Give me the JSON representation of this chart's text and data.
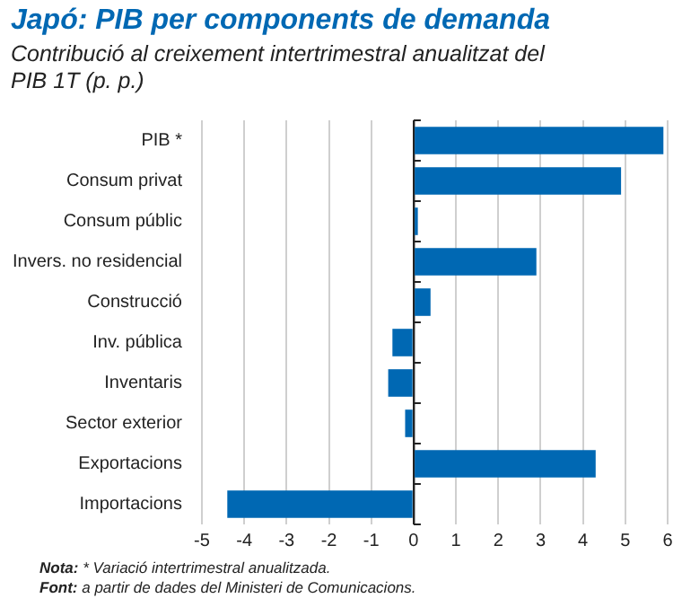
{
  "chart_data": {
    "type": "bar",
    "orientation": "horizontal",
    "title": "Japó: PIB per components de demanda",
    "subtitle": "Contribució al creixement intertrimestral anualitzat del PIB 1T (p. p.)",
    "categories": [
      "PIB *",
      "Consum privat",
      "Consum públic",
      "Invers. no residencial",
      "Construcció",
      "Inv. pública",
      "Inventaris",
      "Sector exterior",
      "Exportacions",
      "Importacions"
    ],
    "values": [
      5.9,
      4.9,
      0.1,
      2.9,
      0.4,
      -0.5,
      -0.6,
      -0.2,
      4.3,
      -4.4
    ],
    "color": "#0068b3",
    "xlim": [
      -5,
      6
    ],
    "xticks": [
      -5,
      -4,
      -3,
      -2,
      -1,
      0,
      1,
      2,
      3,
      4,
      5,
      6
    ],
    "grid": "x",
    "legend": false,
    "annotations": [
      "Nota: * Variació intertrimestral anualitzada.",
      "Font: a partir de dades del Ministeri de Comunicacions."
    ]
  }
}
